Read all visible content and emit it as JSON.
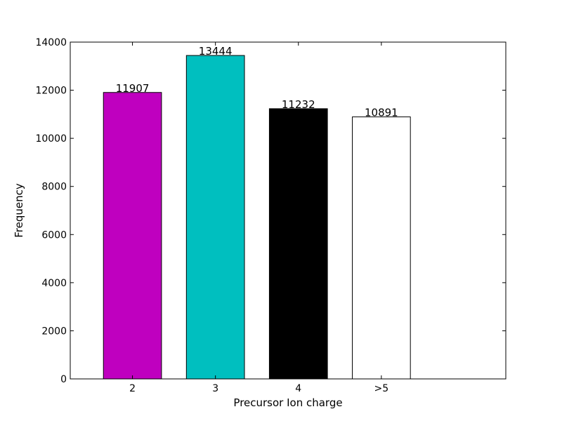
{
  "chart_data": {
    "type": "bar",
    "title": "",
    "xlabel": "Precursor Ion charge",
    "ylabel": "Frequency",
    "categories": [
      "2",
      "3",
      "4",
      ">5"
    ],
    "values": [
      11907,
      13444,
      11232,
      10891
    ],
    "data_labels": [
      "11907",
      "13444",
      "11232",
      "10891"
    ],
    "colors": [
      "#bf00bf",
      "#00bfbf",
      "#000000",
      "#ffffff"
    ],
    "ylim": [
      0,
      14000
    ],
    "yticks": [
      0,
      2000,
      4000,
      6000,
      8000,
      10000,
      12000,
      14000
    ],
    "ytick_labels": [
      "0",
      "2000",
      "4000",
      "6000",
      "8000",
      "10000",
      "12000",
      "14000"
    ],
    "xlim": [
      -0.75,
      4.5
    ],
    "grid": false,
    "legend": "none"
  }
}
